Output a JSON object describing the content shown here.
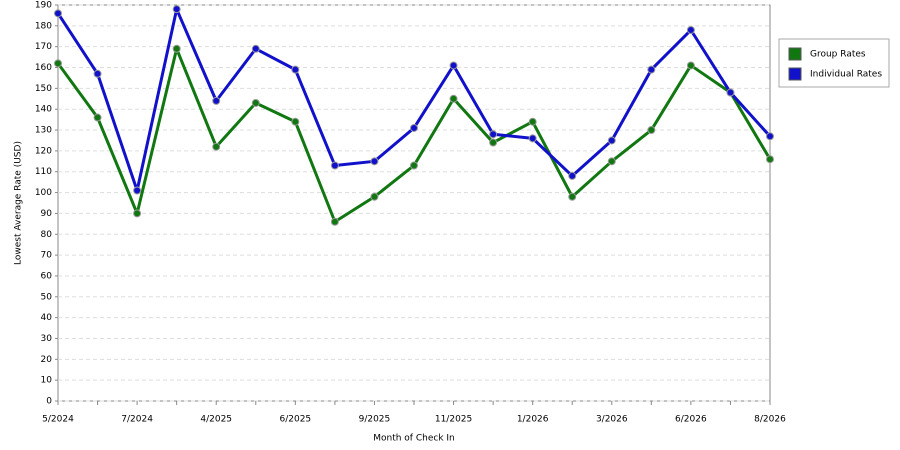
{
  "chart_data": {
    "type": "line",
    "x_label": "Month of Check In",
    "y_label": "Lowest Average Rate (USD)",
    "categories": [
      "5/2024",
      null,
      "7/2024",
      null,
      "4/2025",
      null,
      "6/2025",
      null,
      "9/2025",
      null,
      "11/2025",
      null,
      "1/2026",
      null,
      "3/2026",
      null,
      "6/2026",
      null,
      "8/2026"
    ],
    "series": [
      {
        "name": "Group Rates",
        "color": "#117711",
        "values": [
          162,
          136,
          90,
          169,
          122,
          143,
          134,
          86,
          98,
          113,
          145,
          124,
          134,
          98,
          115,
          130,
          161,
          148,
          116
        ]
      },
      {
        "name": "Individual Rates",
        "color": "#1111cc",
        "values": [
          186,
          157,
          101,
          188,
          144,
          169,
          159,
          113,
          115,
          131,
          161,
          128,
          126,
          108,
          125,
          159,
          178,
          148,
          127
        ]
      }
    ],
    "ylim": [
      0,
      190
    ],
    "yticks": [
      0,
      10,
      20,
      30,
      40,
      50,
      60,
      70,
      80,
      90,
      100,
      110,
      120,
      130,
      140,
      150,
      160,
      170,
      180,
      190
    ],
    "grid": true,
    "legend": "right"
  }
}
